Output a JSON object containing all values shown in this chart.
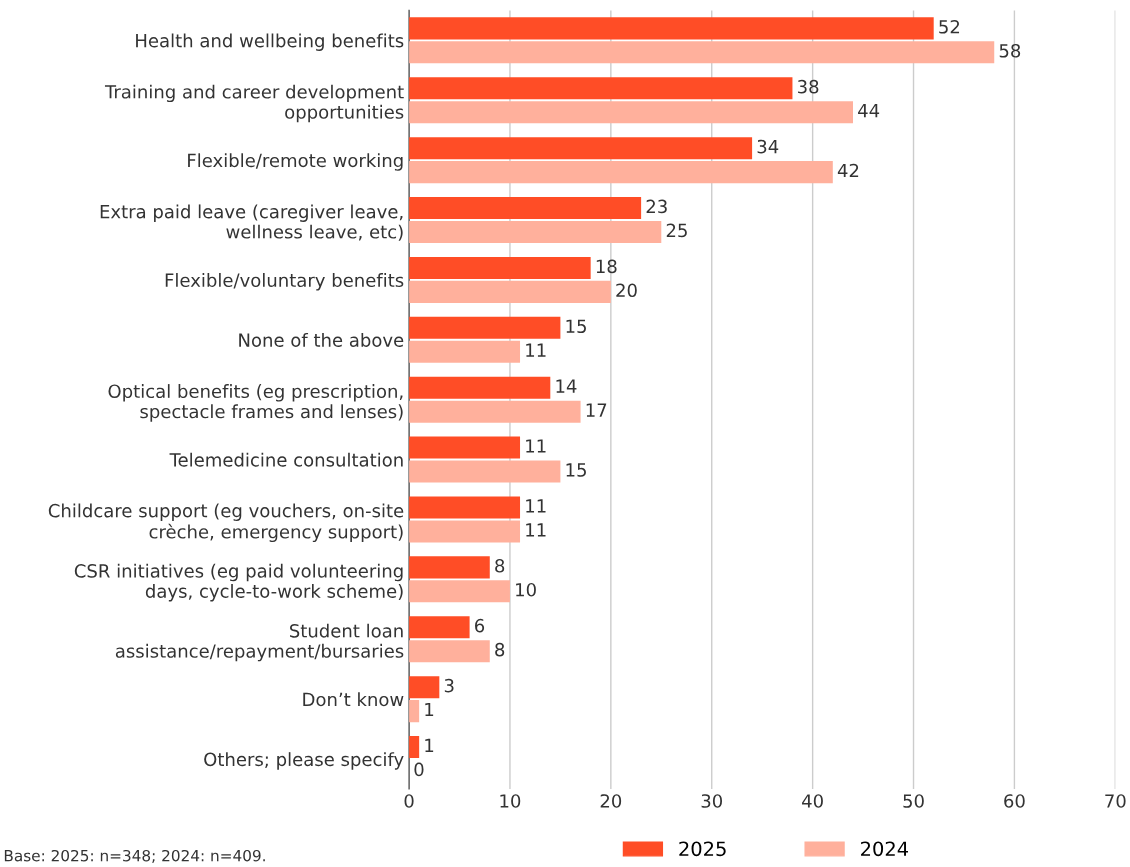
{
  "chart_data": {
    "type": "bar",
    "orientation": "horizontal",
    "categories": [
      "Health and wellbeing benefits",
      "Training and career development\nopportunities",
      "Flexible/remote working",
      "Extra paid leave (caregiver leave,\nwellness leave, etc)",
      "Flexible/voluntary benefits",
      "None of the above",
      "Optical benefits (eg prescription,\nspectacle frames and lenses)",
      "Telemedicine consultation",
      "Childcare support (eg vouchers, on-site\ncrèche, emergency support)",
      "CSR initiatives (eg paid volunteering\ndays, cycle-to-work scheme)",
      "Student loan\nassistance/repayment/bursaries",
      "Don’t know",
      "Others; please specify"
    ],
    "series": [
      {
        "name": "2025",
        "color": "#ff4d26",
        "values": [
          52,
          38,
          34,
          23,
          18,
          15,
          14,
          11,
          11,
          8,
          6,
          3,
          1
        ]
      },
      {
        "name": "2024",
        "color": "#ffb09c",
        "values": [
          58,
          44,
          42,
          25,
          20,
          11,
          17,
          15,
          11,
          10,
          8,
          1,
          0
        ]
      }
    ],
    "xlim": [
      0,
      70
    ],
    "xticks": [
      0,
      10,
      20,
      30,
      40,
      50,
      60,
      70
    ],
    "grid": "x",
    "legend": "bottom",
    "data_labels": true,
    "annotations": [
      "Base: 2025: n=348; 2024: n=409."
    ]
  }
}
